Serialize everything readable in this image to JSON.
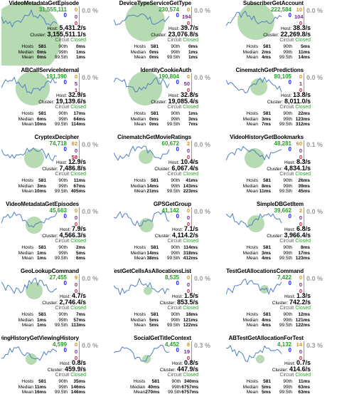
{
  "circuit_label": "Circuit",
  "columns": {
    "hosts": "Hosts",
    "median": "Median",
    "mean": "Mean",
    "p90": "90th",
    "p99": "99th",
    "p995": "99.5th"
  },
  "colors": {
    "circle": "#a9d3a3",
    "spark": "#4f7fc1",
    "green": "#2c9b2c",
    "blue": "#1a23d6"
  },
  "cards": [
    {
      "name": "VideoMetadataGetEpisode",
      "req": "31,555,111",
      "req2": "0",
      "c1": "0",
      "c2": "0",
      "c3": "0",
      "pct": "0.0 %",
      "host": "5,431.2/s",
      "cluster": "3,155,511.1/s",
      "status": "Closed",
      "hosts": "581",
      "median": "0ms",
      "mean": "0ms",
      "p90": "0ms",
      "p99": "1ms",
      "p995": "1ms",
      "circle": [
        32,
        46,
        52
      ]
    },
    {
      "name": "DeviceTypeServiceGetType",
      "req": "230,574",
      "req2": "0",
      "c1": "0",
      "c2": "194",
      "c3": "0",
      "pct": "0.0 %",
      "host": "39.7/s",
      "cluster": "23,076.8/s",
      "status": "Closed",
      "hosts": "581",
      "median": "0ms",
      "mean": "0ms",
      "p90": "0ms",
      "p99": "1ms",
      "p995": "1ms",
      "circle": [
        44,
        22,
        28
      ]
    },
    {
      "name": "SubscriberGetAccount",
      "req": "222,584",
      "req2": "0",
      "c1": "10",
      "c2": "104",
      "c3": "0",
      "pct": "0.0 %",
      "host": "38.3/s",
      "cluster": "22,269.8/s",
      "status": "Closed",
      "hosts": "581",
      "median": "2ms",
      "mean": "4ms",
      "p90": "5ms",
      "p99": "11ms",
      "p995": "14ms",
      "circle": [
        42,
        22,
        26
      ]
    },
    {
      "name": "ABCallServiceInternal",
      "req": "191,390",
      "req2": "0",
      "c1": "0",
      "c2": "5",
      "c3": "1",
      "pct": "0.0 %",
      "host": "32.9/s",
      "cluster": "19,139.6/s",
      "status": "Closed",
      "hosts": "581",
      "median": "6ms",
      "mean": "10ms",
      "p90": "17ms",
      "p99": "64ms",
      "p995": "114ms",
      "circle": [
        44,
        22,
        24
      ]
    },
    {
      "name": "IdentityCookieAuth",
      "req": "190,804",
      "req2": "0",
      "c1": "0",
      "c2": "50",
      "c3": "0",
      "pct": "0.0 %",
      "host": "32.8/s",
      "cluster": "19,085.4/s",
      "status": "Closed",
      "hosts": "581",
      "median": "0ms",
      "mean": "0ms",
      "p90": "1ms",
      "p99": "3ms",
      "p995": "7ms",
      "circle": [
        44,
        22,
        24
      ]
    },
    {
      "name": "CinematchGetPredictions",
      "req": "80,105",
      "req2": "0",
      "c1": "0",
      "c2": "1",
      "c3": "0",
      "pct": "0.0 %",
      "host": "13.8/s",
      "cluster": "8,011.0/s",
      "status": "Closed",
      "hosts": "581",
      "median": "3ms",
      "mean": "7ms",
      "p90": "22ms",
      "p99": "123ms",
      "p995": "312ms",
      "circle": [
        46,
        20,
        12
      ]
    },
    {
      "name": "CryptexDecipher",
      "req": "74,718",
      "req2": "0",
      "c1": "92",
      "c2": "0",
      "c3": "58",
      "pct": "0.0 %",
      "host": "12.9/s",
      "cluster": "7,486.8/s",
      "status": "Closed",
      "hosts": "581",
      "median": "3ms",
      "mean": "10ms",
      "p90": "11ms",
      "p99": "67ms",
      "p995": "405ms",
      "circle": [
        46,
        26,
        14
      ]
    },
    {
      "name": "CinematchGetMovieRatings",
      "req": "60,672",
      "req2": "0",
      "c1": "2",
      "c2": "0",
      "c3": "0",
      "pct": "0.0 %",
      "host": "10.4/s",
      "cluster": "6,067.4/s",
      "status": "Closed",
      "hosts": "581",
      "median": "14ms",
      "mean": "21ms",
      "p90": "41ms",
      "p99": "143ms",
      "p995": "223ms",
      "circle": [
        45,
        24,
        10
      ]
    },
    {
      "name": "VideoHistoryGetBookmarks",
      "req": "48,281",
      "req2": "0",
      "c1": "60",
      "c2": "0",
      "c3": "0",
      "pct": "0.1 %",
      "host": "8.3/s",
      "cluster": "4,834.1/s",
      "status": "Closed",
      "hosts": "581",
      "median": "8ms",
      "mean": "11ms",
      "p90": "26ms",
      "p99": "39ms",
      "p995": "45ms",
      "circle": [
        40,
        26,
        14
      ]
    },
    {
      "name": "VideoMetadataGetEpisodes",
      "req": "45,663",
      "req2": "0",
      "c1": "0",
      "c2": "0",
      "c3": "0",
      "pct": "0.0 %",
      "host": "7.9/s",
      "cluster": "4,566.3/s",
      "status": "Closed",
      "hosts": "581",
      "median": "1ms",
      "mean": "1ms",
      "p90": "2ms",
      "p99": "5ms",
      "p995": "6ms",
      "circle": [
        46,
        26,
        12
      ]
    },
    {
      "name": "GPSGetGroup",
      "req": "41,142",
      "req2": "0",
      "c1": "0",
      "c2": "0",
      "c3": "0",
      "pct": "0.0 %",
      "host": "7.1/s",
      "cluster": "4,114.2/s",
      "status": "Closed",
      "hosts": "581",
      "median": "14ms",
      "mean": "38ms",
      "p90": "114ms",
      "p99": "318ms",
      "p995": "412ms",
      "circle": [
        46,
        26,
        10
      ]
    },
    {
      "name": "SimpleDBGetItem",
      "req": "39,662",
      "req2": "0",
      "c1": "2",
      "c2": "0",
      "c3": "0",
      "pct": "0.0 %",
      "host": "6.8/s",
      "cluster": "3,966.4/s",
      "status": "Closed",
      "hosts": "581",
      "median": "3ms",
      "mean": "4ms",
      "p90": "8ms",
      "p99": "17ms",
      "p995": "123ms",
      "circle": [
        42,
        24,
        12
      ]
    },
    {
      "name": "GeoLookupCommand",
      "req": "27,455",
      "req2": "0",
      "c1": "9",
      "c2": "0",
      "c3": "0",
      "pct": "0.0 %",
      "host": "4.7/s",
      "cluster": "2,746.4/s",
      "status": "Closed",
      "hosts": "581",
      "median": "1ms",
      "mean": "1ms",
      "p90": "7ms",
      "p99": "57ms",
      "p995": "113ms",
      "circle": [
        46,
        24,
        12
      ]
    },
    {
      "name": "ABTestGetCellsAsAllocationsList",
      "req": "8,535",
      "req2": "0",
      "c1": "0",
      "c2": "0",
      "c3": "0",
      "pct": "0.0 %",
      "host": "1.5/s",
      "cluster": "853.5/s",
      "status": "Closed",
      "hosts": "581",
      "median": "5ms",
      "mean": "5ms",
      "p90": "18ms",
      "p99": "121ms",
      "p995": "122ms",
      "circle": [
        48,
        24,
        6
      ]
    },
    {
      "name": "ABTestGetAllocationsCommand",
      "req": "7,422",
      "req2": "0",
      "c1": "0",
      "c2": "0",
      "c3": "0",
      "pct": "0.0 %",
      "host": "1.3/s",
      "cluster": "742.2/s",
      "status": "Closed",
      "hosts": "581",
      "median": "4ms",
      "mean": "4ms",
      "p90": "12ms",
      "p99": "121ms",
      "p995": "122ms",
      "circle": [
        54,
        22,
        6
      ]
    },
    {
      "name": "ViewingHistoryGetViewingHistory",
      "req": "4,599",
      "req2": "0",
      "c1": "0",
      "c2": "0",
      "c3": "0",
      "pct": "0.0 %",
      "host": "0.8/s",
      "cluster": "459.9/s",
      "status": "Closed",
      "hosts": "581",
      "median": "11ms",
      "mean": "16ms",
      "p90": "35ms",
      "p99": "146ms",
      "p995": "146ms",
      "circle": [
        42,
        26,
        8
      ]
    },
    {
      "name": "SocialGetTitleContext",
      "req": "4,452",
      "req2": "0",
      "c1": "8",
      "c2": "19",
      "c3": "0",
      "pct": "0.3 %",
      "host": "0.8/s",
      "cluster": "447.9/s",
      "status": "Closed",
      "hosts": "581",
      "median": "40ms",
      "mean": "270ms",
      "p90": "340ms",
      "p99": "6757ms",
      "p995": "6757ms",
      "circle": [
        46,
        26,
        6
      ]
    },
    {
      "name": "ABTestGetAllocationForTest",
      "req": "4,132",
      "req2": "0",
      "c1": "14",
      "c2": "0",
      "c3": "0",
      "pct": "0.3 %",
      "host": "0.7/s",
      "cluster": "414.6/s",
      "status": "Closed",
      "hosts": "581",
      "median": "5ms",
      "mean": "5ms",
      "p90": "11ms",
      "p99": "63ms",
      "p995": "63ms",
      "circle": [
        48,
        26,
        6
      ]
    }
  ]
}
